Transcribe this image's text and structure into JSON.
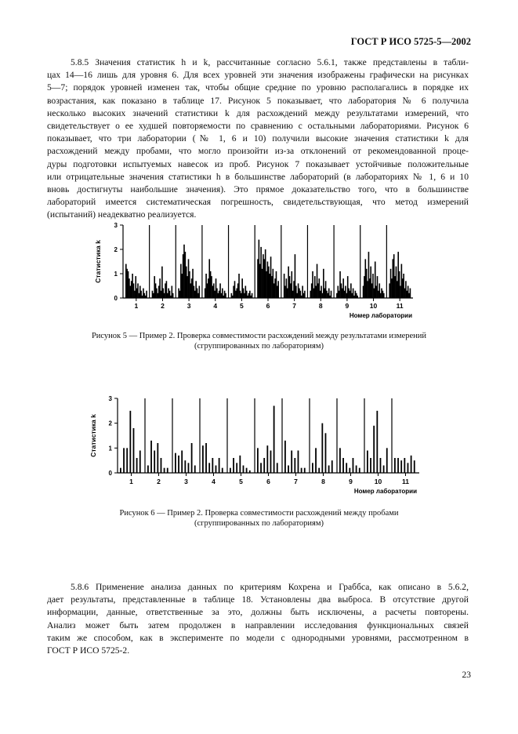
{
  "header": {
    "doc_id": "ГОСТ Р ИСО 5725-5—2002"
  },
  "para1": {
    "lines": [
      "5.8.5 Значения статистик h и k, рассчитанные согласно 5.6.1, также представлены в табли-",
      "цах 14—16 лишь для уровня 6. Для всех уровней эти значения изображены графически на рисунках",
      "5—7; порядок уровней изменен так, чтобы общие средние по уровню располагались в порядке их",
      "возрастания, как показано в таблице 17. Рисунок 5 показывает, что лаборатория № 6 получила",
      "несколько высоких значений статистики k для расхождений между результатами измерений, что",
      "свидетельствует о ее худшей повторяемости по сравнению с остальными лабораториями. Рисунок 6",
      "показывает, что три лаборатории (№ 1, 6 и 10) получили высокие значения статистики k для",
      "расхождений между пробами, что могло произойти из-за отклонений от рекомендованной проце-",
      "дуры подготовки испытуемых навесок из проб. Рисунок 7 показывает устойчивые положительные",
      "или отрицательные значения статистики h в большинстве лабораторий (в лабораториях № 1, 6 и 10",
      "вновь достигнуты наибольшие значения). Это прямое доказательство того, что в большинстве",
      "лабораторий имеется систематическая погрешность, свидетельствующая, что метод измерений",
      "(испытаний) неадекватно реализуется."
    ]
  },
  "figure5": {
    "ylabel": "Статистика k",
    "xlabel": "Номер лаборатории",
    "yticks": [
      "0",
      "1",
      "2",
      "3"
    ],
    "labs": [
      "1",
      "2",
      "3",
      "4",
      "5",
      "6",
      "7",
      "8",
      "9",
      "10",
      "11"
    ],
    "caption_line1": "Рисунок 5 — Пример 2. Проверка совместимости расхождений между результатами измерений",
    "caption_line2": "(сгруппированных по лабораториям)"
  },
  "figure6": {
    "ylabel": "Статистика k",
    "xlabel": "Номер лаборатории",
    "yticks": [
      "0",
      "1",
      "2",
      "3"
    ],
    "labs": [
      "1",
      "2",
      "3",
      "4",
      "5",
      "6",
      "7",
      "8",
      "9",
      "10",
      "11"
    ],
    "caption_line1": "Рисунок 6 — Пример 2. Проверка совместимости расхождений между пробами",
    "caption_line2": "(сгруппированных по лабораториям)"
  },
  "chart_data": [
    {
      "type": "bar",
      "ylabel": "Статистика k",
      "xlabel": "Номер лаборатории",
      "ylim": [
        0,
        3
      ],
      "categories": [
        "1",
        "2",
        "3",
        "4",
        "5",
        "6",
        "7",
        "8",
        "9",
        "10",
        "11"
      ],
      "series_by_lab": [
        [
          1.4,
          1.2,
          1.1,
          0.8,
          0.5,
          0.7,
          1.0,
          0.6,
          0.3,
          0.9,
          0.4,
          0.6,
          0.2,
          0.5,
          0.3,
          0.1,
          0.4,
          0.2,
          0.1,
          0.3
        ],
        [
          0.3,
          0.2,
          0.9,
          0.6,
          0.4,
          0.2,
          0.5,
          0.8,
          0.3,
          1.3,
          0.4,
          0.2,
          0.6,
          0.7,
          0.2,
          0.4,
          0.3,
          0.1,
          0.5,
          0.2
        ],
        [
          0.4,
          0.3,
          1.4,
          1.0,
          1.8,
          2.2,
          1.9,
          1.3,
          0.9,
          1.6,
          1.1,
          0.6,
          0.8,
          1.2,
          0.5,
          0.3,
          0.7,
          0.4,
          0.2,
          0.5
        ],
        [
          0.4,
          1.0,
          0.6,
          0.8,
          1.6,
          1.1,
          0.9,
          0.5,
          0.6,
          0.3,
          0.8,
          0.4,
          0.2,
          0.3,
          0.6,
          0.2,
          0.4,
          0.1,
          0.3,
          0.2
        ],
        [
          0.2,
          0.1,
          0.5,
          0.7,
          0.3,
          0.4,
          0.6,
          1.0,
          0.3,
          0.2,
          0.8,
          0.4,
          0.2,
          0.5,
          0.3,
          0.1,
          0.2,
          0.3,
          0.1,
          0.2
        ],
        [
          1.6,
          2.4,
          1.4,
          2.1,
          1.2,
          1.8,
          1.6,
          2.0,
          1.1,
          1.5,
          1.3,
          1.0,
          1.7,
          0.9,
          1.2,
          0.6,
          0.8,
          1.1,
          0.5,
          0.7
        ],
        [
          1.0,
          0.5,
          0.8,
          0.4,
          1.3,
          0.9,
          0.6,
          1.1,
          0.3,
          0.7,
          1.8,
          0.5,
          0.2,
          0.6,
          0.4,
          0.3,
          0.1,
          0.5,
          0.2,
          0.3
        ],
        [
          0.3,
          0.6,
          1.1,
          0.4,
          0.9,
          0.5,
          1.4,
          0.6,
          0.8,
          0.3,
          0.5,
          0.2,
          1.2,
          0.4,
          0.7,
          0.3,
          0.2,
          0.4,
          0.1,
          0.3
        ],
        [
          0.2,
          0.5,
          0.3,
          1.1,
          0.6,
          0.4,
          0.8,
          0.3,
          0.5,
          0.2,
          0.9,
          0.4,
          0.3,
          0.6,
          0.2,
          0.4,
          0.1,
          0.3,
          0.2,
          0.1
        ],
        [
          0.5,
          0.9,
          1.6,
          1.2,
          0.7,
          1.9,
          0.8,
          1.3,
          0.6,
          1.0,
          0.4,
          1.5,
          0.5,
          0.9,
          0.3,
          0.6,
          0.2,
          0.4,
          0.3,
          0.2
        ],
        [
          0.6,
          1.2,
          0.8,
          1.6,
          1.8,
          0.9,
          1.3,
          0.7,
          1.9,
          1.1,
          0.5,
          1.4,
          0.8,
          1.0,
          0.4,
          0.7,
          0.3,
          0.5,
          0.2,
          0.4
        ]
      ]
    },
    {
      "type": "bar",
      "ylabel": "Статистика k",
      "xlabel": "Номер лаборатории",
      "ylim": [
        0,
        3
      ],
      "categories": [
        "1",
        "2",
        "3",
        "4",
        "5",
        "6",
        "7",
        "8",
        "9",
        "10",
        "11"
      ],
      "series_by_lab": [
        [
          0.2,
          1.0,
          1.0,
          2.5,
          1.8,
          0.6,
          0.9
        ],
        [
          0.3,
          1.3,
          0.9,
          1.2,
          0.6,
          0.2,
          0.2
        ],
        [
          0.8,
          0.7,
          0.9,
          0.5,
          0.4,
          1.2,
          0.3
        ],
        [
          1.1,
          1.2,
          0.4,
          0.6,
          0.3,
          0.6,
          0.2
        ],
        [
          0.2,
          0.6,
          0.4,
          0.7,
          0.3,
          0.2,
          0.1
        ],
        [
          1.0,
          0.4,
          0.6,
          1.1,
          0.9,
          2.7,
          0.4
        ],
        [
          1.3,
          0.3,
          0.9,
          0.6,
          0.9,
          0.2,
          0.2
        ],
        [
          0.4,
          1.0,
          0.2,
          2.0,
          1.6,
          0.3,
          0.5
        ],
        [
          1.0,
          0.6,
          0.4,
          0.2,
          0.6,
          0.3,
          0.2
        ],
        [
          0.9,
          0.6,
          1.9,
          2.5,
          0.6,
          0.3,
          1.0
        ],
        [
          0.6,
          0.6,
          0.5,
          0.6,
          0.4,
          0.7,
          0.5
        ]
      ]
    }
  ],
  "para2": {
    "lines": [
      "5.8.6 Применение анализа данных по критериям Кохрена и Граббса, как описано в 5.6.2,",
      "дает результаты, представленные в таблице 18. Установлены два выброса. В отсутствие другой",
      "информации, данные, ответственные за это, должны быть исключены, а расчеты повторены.",
      "Анализ может быть затем продолжен в направлении исследования функциональных связей",
      "таким же способом, как в эксперименте по модели с однородными уровнями, рассмотренном в",
      "ГОСТ Р ИСО 5725-2."
    ]
  },
  "footer": {
    "page_number": "23"
  }
}
